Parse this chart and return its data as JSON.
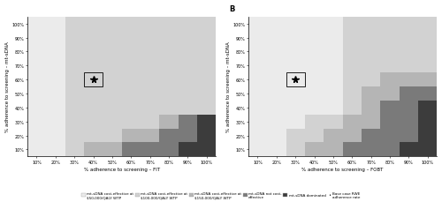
{
  "colors": {
    "ce_50k": "#ebebeb",
    "ce_100k": "#d2d2d2",
    "ce_150k": "#b5b5b5",
    "not_ce": "#7a7a7a",
    "dominated": "#3c3c3c"
  },
  "panel_A": {
    "title": "",
    "xlabel": "% adherence to screening – FIT",
    "ylabel": "% adherence to screening – mt-sDNA",
    "star_x": 40,
    "star_y": 60,
    "dark_grid": [
      [
        0,
        0,
        0,
        2,
        2,
        2,
        2,
        2,
        2,
        2
      ],
      [
        0,
        0,
        0,
        0,
        2,
        2,
        2,
        2,
        2,
        2
      ],
      [
        0,
        0,
        0,
        0,
        0,
        2,
        2,
        2,
        2,
        2
      ],
      [
        0,
        0,
        0,
        0,
        0,
        0,
        2,
        2,
        2,
        2
      ],
      [
        0,
        0,
        0,
        0,
        0,
        0,
        0,
        2,
        2,
        2
      ],
      [
        0,
        0,
        0,
        0,
        0,
        0,
        0,
        0,
        2,
        2
      ],
      [
        0,
        0,
        0,
        0,
        0,
        0,
        0,
        0,
        0,
        2
      ],
      [
        0,
        0,
        0,
        0,
        0,
        0,
        0,
        0,
        0,
        0
      ],
      [
        0,
        0,
        0,
        0,
        0,
        0,
        0,
        0,
        0,
        0
      ]
    ],
    "stair_grid": [
      [
        0,
        0,
        0,
        0,
        0,
        0,
        0,
        0,
        0,
        0
      ],
      [
        0,
        0,
        0,
        0,
        0,
        0,
        0,
        0,
        0,
        0
      ],
      [
        0,
        0,
        0,
        0,
        0,
        0,
        0,
        0,
        0,
        0
      ],
      [
        0,
        0,
        0,
        0,
        0,
        0,
        0,
        0,
        0,
        0
      ],
      [
        0,
        0,
        0,
        0,
        0,
        0,
        0,
        0,
        0,
        0
      ],
      [
        0,
        0,
        0,
        0,
        0,
        0,
        0,
        0,
        0,
        0
      ],
      [
        0,
        0,
        0,
        0,
        0,
        0,
        0,
        0,
        0,
        3
      ],
      [
        0,
        0,
        0,
        0,
        0,
        0,
        0,
        3,
        3,
        3
      ],
      [
        0,
        0,
        0,
        0,
        0,
        3,
        3,
        3,
        3,
        4
      ]
    ]
  },
  "panel_B": {
    "title": "B",
    "xlabel": "% adherence to screening – FOBT",
    "ylabel": "% adherence to screening – mt-sDNA",
    "star_x": 30,
    "star_y": 60
  },
  "x_ticks": [
    10,
    20,
    30,
    40,
    50,
    60,
    70,
    80,
    90,
    100
  ],
  "y_ticks": [
    10,
    20,
    30,
    40,
    50,
    60,
    70,
    80,
    90,
    100
  ],
  "legend": [
    {
      "label": "mt-sDNA cost-effective at\n$50,000/QALY WTP",
      "color": "#ebebeb"
    },
    {
      "label": "mt-sDNA cost-effective at\n$100,000/QALY WTP",
      "color": "#d2d2d2"
    },
    {
      "label": "mt-sDNA cost-effective at\n$150,000/QALY WTP",
      "color": "#b5b5b5"
    },
    {
      "label": "mt-sDNA not cost-\neffective",
      "color": "#7a7a7a"
    },
    {
      "label": "mt-sDNA dominated",
      "color": "#3c3c3c"
    },
    {
      "label": "Base case RWE\nadherence rate",
      "color": "star"
    }
  ]
}
